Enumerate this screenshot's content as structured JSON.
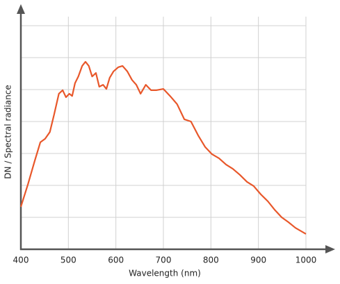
{
  "chart_data": {
    "type": "line",
    "xlabel": "Wavelength (nm)",
    "ylabel": "DN / Spectral radiance",
    "x": [
      400,
      415,
      429,
      441,
      451,
      461,
      470,
      480,
      488,
      495,
      502,
      508,
      514,
      521,
      529,
      536,
      543,
      550,
      558,
      565,
      573,
      580,
      587,
      595,
      605,
      614,
      624,
      634,
      643,
      652,
      663,
      674,
      685,
      700,
      714,
      729,
      744,
      758,
      773,
      788,
      802,
      817,
      832,
      846,
      861,
      876,
      890,
      905,
      920,
      934,
      949,
      963,
      978,
      1000
    ],
    "series": [
      {
        "name": "DN / Spectral radiance",
        "color": "#e8572a",
        "values": [
          1.33,
          2.04,
          2.76,
          3.35,
          3.46,
          3.67,
          4.22,
          4.87,
          4.98,
          4.76,
          4.87,
          4.8,
          5.2,
          5.41,
          5.74,
          5.87,
          5.74,
          5.41,
          5.52,
          5.09,
          5.15,
          5.02,
          5.37,
          5.57,
          5.7,
          5.74,
          5.57,
          5.3,
          5.15,
          4.87,
          5.15,
          4.98,
          4.98,
          5.02,
          4.8,
          4.54,
          4.07,
          4.0,
          3.57,
          3.2,
          2.98,
          2.85,
          2.65,
          2.52,
          2.33,
          2.11,
          1.98,
          1.72,
          1.5,
          1.24,
          1.0,
          0.85,
          0.67,
          0.48
        ]
      }
    ],
    "xlim": [
      400,
      1000
    ],
    "xticks": [
      400,
      500,
      600,
      700,
      800,
      900,
      1000
    ],
    "ylim": [
      0,
      7.5
    ],
    "yticks": [
      1,
      2,
      3,
      4,
      5,
      6,
      7
    ],
    "grid": true
  }
}
